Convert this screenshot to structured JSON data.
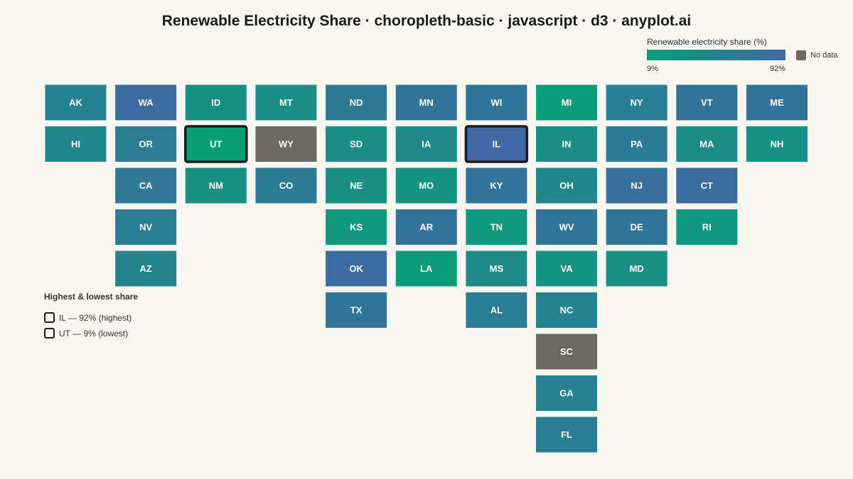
{
  "title": "Renewable Electricity Share · choropleth-basic · javascript · d3 · anyplot.ai",
  "legend": {
    "title": "Renewable electricity share (%)",
    "min_label": "9%",
    "max_label": "92%",
    "no_data_label": "No data",
    "colors": {
      "low": "#0a9e78",
      "high": "#3f68a3",
      "no_data": "#6a6a62",
      "highlight_border": "#1a1a1a"
    }
  },
  "extremes": {
    "title": "Highest & lowest share",
    "items": [
      {
        "label": "IL — 92% (highest)"
      },
      {
        "label": "UT — 9% (lowest)"
      }
    ]
  },
  "chart_data": {
    "type": "tile-map choropleth",
    "value_range": [
      9,
      92
    ],
    "unit": "%",
    "columns": [
      [
        "AK",
        "HI"
      ],
      [
        "WA",
        "OR",
        "CA",
        "NV",
        "AZ"
      ],
      [
        "ID",
        "UT",
        "NM"
      ],
      [
        "MT",
        "WY",
        "CO"
      ],
      [
        "ND",
        "SD",
        "NE",
        "KS",
        "OK",
        "TX"
      ],
      [
        "MN",
        "IA",
        "MO",
        "AR",
        "LA"
      ],
      [
        "WI",
        "IL",
        "KY",
        "TN",
        "MS",
        "AL"
      ],
      [
        "MI",
        "IN",
        "OH",
        "WV",
        "VA",
        "NC",
        "SC",
        "GA",
        "FL"
      ],
      [
        "NY",
        "PA",
        "NJ",
        "DE",
        "MD"
      ],
      [
        "VT",
        "MA",
        "CT",
        "RI"
      ],
      [
        "ME",
        "NH"
      ]
    ],
    "values": {
      "AK": 52,
      "HI": 48,
      "WA": 88,
      "OR": 62,
      "CA": 68,
      "NV": 60,
      "AZ": 50,
      "ID": 30,
      "UT": 9,
      "NM": 30,
      "MT": 35,
      "WY": null,
      "CO": 63,
      "ND": 65,
      "SD": 36,
      "NE": 32,
      "KS": 18,
      "OK": 88,
      "TX": 72,
      "MN": 75,
      "IA": 42,
      "MO": 24,
      "AR": 74,
      "LA": 11,
      "WI": 70,
      "IL": 92,
      "KY": 75,
      "TN": 18,
      "MS": 40,
      "AL": 60,
      "MI": 10,
      "IN": 35,
      "OH": 48,
      "WV": 72,
      "VA": 28,
      "NC": 50,
      "SC": null,
      "GA": 54,
      "FL": 58,
      "NY": 58,
      "PA": 63,
      "NJ": 80,
      "DE": 72,
      "MD": 32,
      "VT": 74,
      "MA": 36,
      "CT": 86,
      "RI": 22,
      "ME": 75,
      "NH": 30
    },
    "highlighted": [
      "IL",
      "UT"
    ]
  }
}
